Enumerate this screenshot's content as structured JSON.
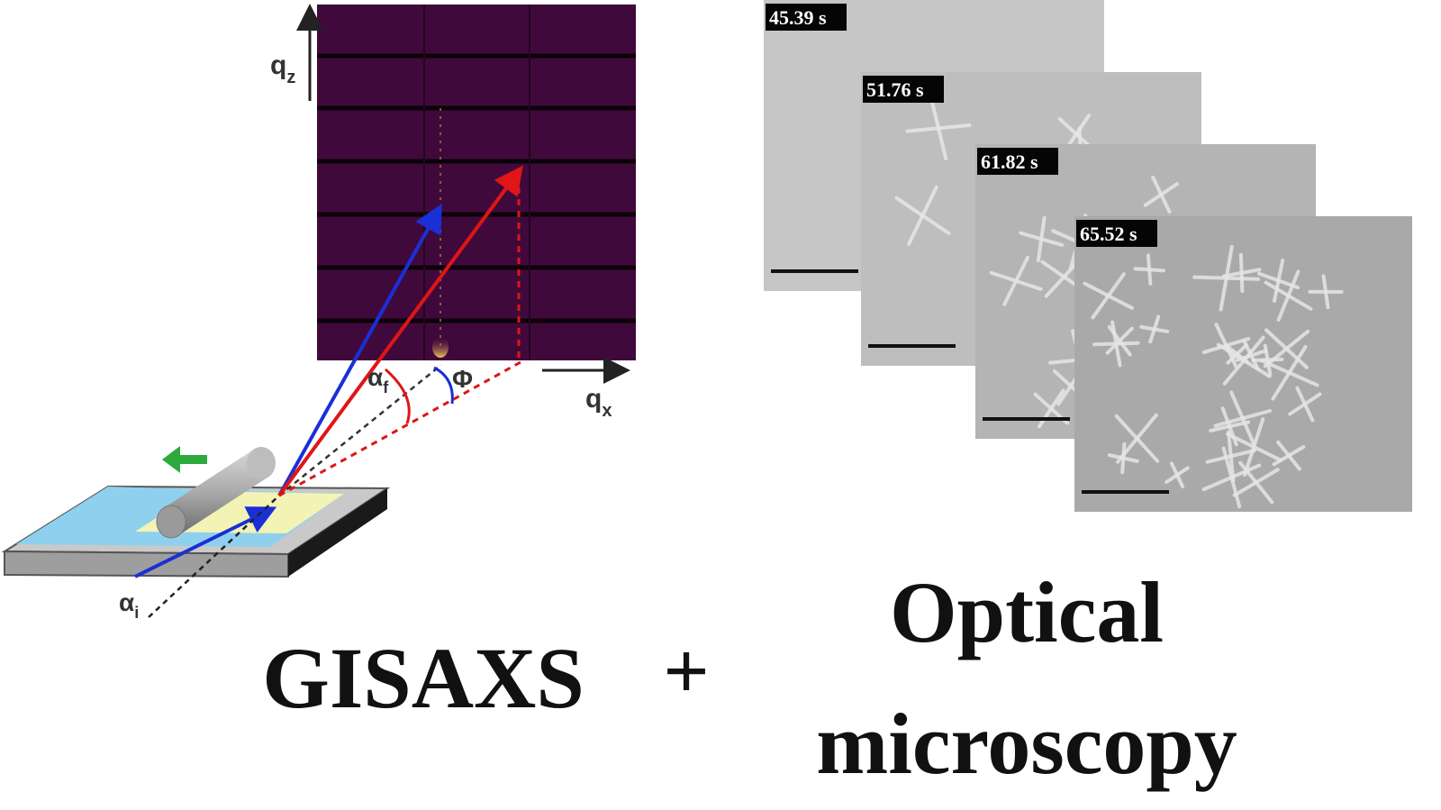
{
  "gisaxs_panel": {
    "qz_label": {
      "symbol": "q",
      "sub": "z"
    },
    "qx_label": {
      "symbol": "q",
      "sub": "x"
    },
    "alpha_f_label": {
      "symbol": "α",
      "sub": "f"
    },
    "phi_label": "Φ",
    "alpha_i_label": {
      "symbol": "α",
      "sub": "i"
    }
  },
  "microscopy_frames": [
    "45.39 s",
    "51.76 s",
    "61.82 s",
    "65.52 s"
  ],
  "caption": {
    "left": "GISAXS",
    "plus": "+",
    "right_line1": "Optical",
    "right_line2": "microscopy"
  }
}
